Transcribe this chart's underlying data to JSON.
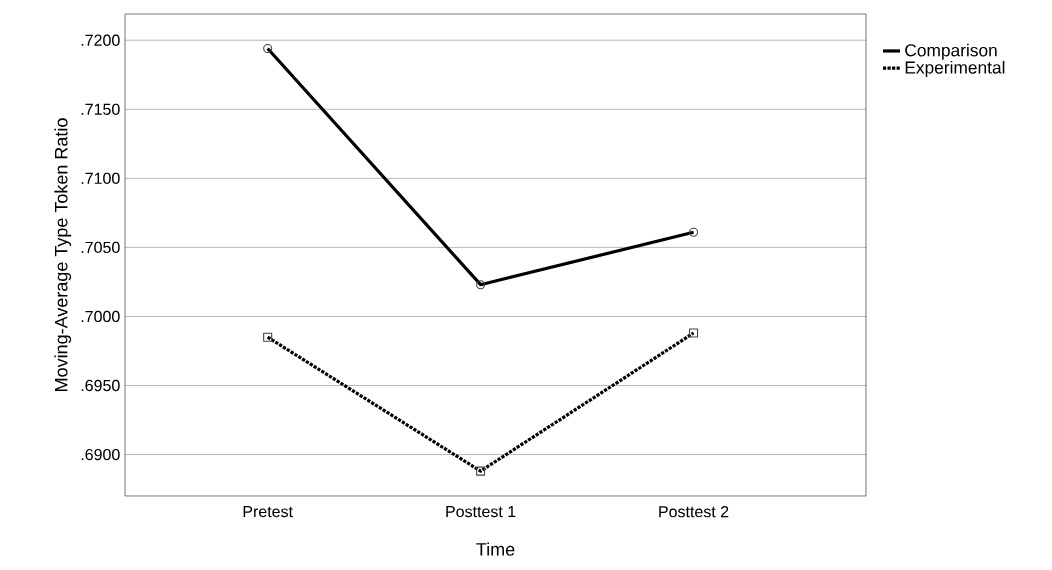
{
  "chart_data": {
    "type": "line",
    "xlabel": "Time",
    "ylabel": "Moving-Average Type Token Ratio",
    "categories": [
      "Pretest",
      "Posttest 1",
      "Posttest 2"
    ],
    "series": [
      {
        "name": "Comparison",
        "color": "#000000",
        "values": [
          0.7194,
          0.7023,
          0.7061
        ],
        "marker": "circle",
        "line_style": "solid"
      },
      {
        "name": "Experimental",
        "color": "#000000",
        "values": [
          0.6985,
          0.6888,
          0.6988
        ],
        "marker": "square",
        "line_style": "dotted"
      }
    ],
    "ylim": [
      0.687,
      0.7219
    ],
    "yticks": [
      {
        "value": 0.69,
        "label": ".6900"
      },
      {
        "value": 0.695,
        "label": ".6950"
      },
      {
        "value": 0.7,
        "label": ".7000"
      },
      {
        "value": 0.705,
        "label": ".7050"
      },
      {
        "value": 0.71,
        "label": ".7100"
      },
      {
        "value": 0.715,
        "label": ".7150"
      },
      {
        "value": 0.72,
        "label": ".7200"
      }
    ],
    "grid": "y",
    "legend": "top right"
  }
}
